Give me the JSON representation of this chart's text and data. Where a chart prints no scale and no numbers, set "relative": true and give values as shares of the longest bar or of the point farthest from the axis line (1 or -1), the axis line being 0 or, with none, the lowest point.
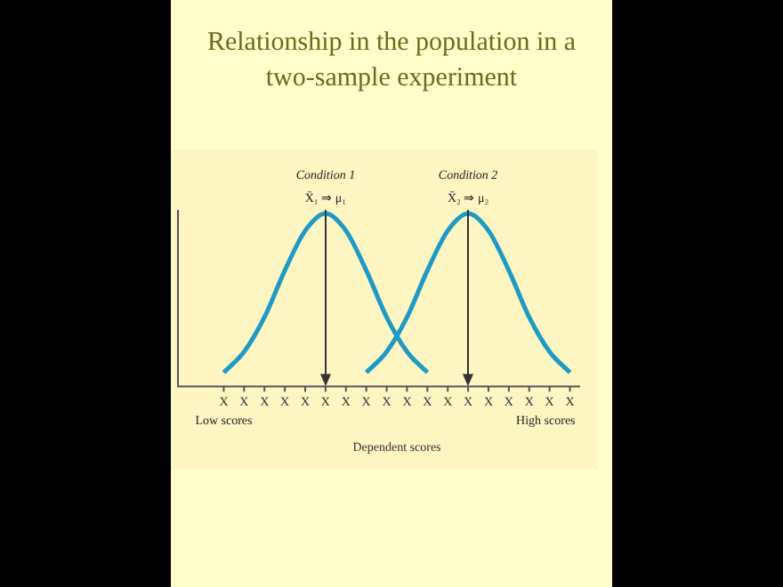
{
  "chart_data": {
    "type": "line",
    "title": "Relationship in the population in a two-sample experiment",
    "xlabel": "Dependent scores",
    "relative": true,
    "grid": false,
    "legend": false,
    "marker": "none",
    "line_style": "solid",
    "categories": [
      "X",
      "X",
      "X",
      "X",
      "X",
      "X",
      "X",
      "X",
      "X",
      "X",
      "X",
      "X",
      "X",
      "X",
      "X",
      "X",
      "X",
      "X"
    ],
    "series": [
      {
        "color": "#1f9ac4",
        "values": [
          0.08,
          0.2,
          0.4,
          0.67,
          0.9,
          1,
          0.9,
          0.67,
          0.4,
          0.2,
          0.08,
          null,
          null,
          null,
          null,
          null,
          null,
          null
        ]
      },
      {
        "color": "#1f9ac4",
        "values": [
          null,
          null,
          null,
          null,
          null,
          null,
          null,
          0.08,
          0.2,
          0.4,
          0.67,
          0.9,
          1,
          0.9,
          0.67,
          0.4,
          0.2,
          0.08
        ]
      }
    ],
    "annotations": [
      "Condition 1",
      "X̄₁ ⇒ μ₁",
      "Condition 2",
      "X̄₂ ⇒ μ₂",
      "Low scores",
      "High scores"
    ]
  }
}
